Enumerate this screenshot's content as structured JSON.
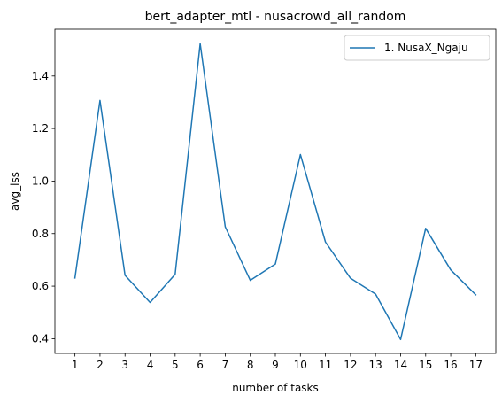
{
  "chart_data": {
    "type": "line",
    "title": "bert_adapter_mtl - nusacrowd_all_random",
    "xlabel": "number of tasks",
    "ylabel": "avg_lss",
    "x": [
      1,
      2,
      3,
      4,
      5,
      6,
      7,
      8,
      9,
      10,
      11,
      12,
      13,
      14,
      15,
      16,
      17
    ],
    "xticks": [
      "1",
      "2",
      "3",
      "4",
      "5",
      "6",
      "7",
      "8",
      "9",
      "10",
      "11",
      "12",
      "13",
      "14",
      "15",
      "16",
      "17"
    ],
    "yticks": [
      "0.4",
      "0.6",
      "0.8",
      "1.0",
      "1.2",
      "1.4"
    ],
    "ytick_values": [
      0.4,
      0.6,
      0.8,
      1.0,
      1.2,
      1.4
    ],
    "xlim": [
      0.2,
      17.8
    ],
    "ylim": [
      0.344,
      1.578
    ],
    "grid": false,
    "legend_position": "top-right",
    "series": [
      {
        "name": "1. NusaX_Ngaju",
        "color": "#1f77b4",
        "values": [
          0.631,
          1.307,
          0.641,
          0.538,
          0.645,
          1.523,
          0.826,
          0.622,
          0.684,
          1.101,
          0.768,
          0.63,
          0.57,
          0.397,
          0.82,
          0.662,
          0.567
        ]
      }
    ]
  }
}
